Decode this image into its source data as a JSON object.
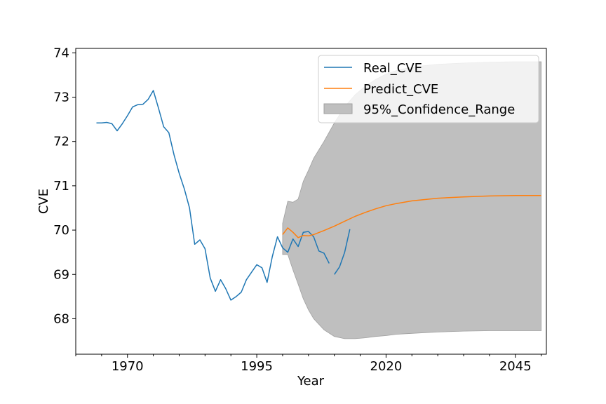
{
  "chart_data": {
    "type": "line",
    "title": "",
    "xlabel": "Year",
    "ylabel": "CVE",
    "xlim": [
      1960,
      2051
    ],
    "ylim": [
      67.2,
      74.1
    ],
    "xticks": [
      1970,
      1995,
      2020,
      2045
    ],
    "yticks": [
      68,
      69,
      70,
      71,
      72,
      73,
      74
    ],
    "grid": false,
    "legend_position": "top-right",
    "legend": [
      "Real_CVE",
      "Predict_CVE",
      "95%_Confidence_Range"
    ],
    "colors": {
      "real": "#1f77b4",
      "predict": "#ff7f0e",
      "band": "#bfbfbf",
      "band_edge": "#a0a0a0"
    },
    "series": [
      {
        "name": "Real_CVE",
        "x": [
          1964,
          1965,
          1966,
          1967,
          1968,
          1969,
          1970,
          1971,
          1972,
          1973,
          1974,
          1975,
          1976,
          1977,
          1978,
          1979,
          1980,
          1981,
          1982,
          1983,
          1984,
          1985,
          1986,
          1987,
          1988,
          1989,
          1990,
          1991,
          1992,
          1993,
          1994,
          1995,
          1996,
          1997,
          1998,
          1999,
          2000,
          2001,
          2002,
          2003,
          2004,
          2005,
          2006,
          2007,
          2008,
          2009
        ],
        "y": [
          72.42,
          72.42,
          72.43,
          72.4,
          72.24,
          72.4,
          72.58,
          72.78,
          72.83,
          72.84,
          72.95,
          73.15,
          72.75,
          72.33,
          72.2,
          71.7,
          71.28,
          70.93,
          70.5,
          69.68,
          69.78,
          69.58,
          68.92,
          68.62,
          68.88,
          68.68,
          68.42,
          68.5,
          68.6,
          68.88,
          69.05,
          69.22,
          69.15,
          68.82,
          69.4,
          69.85,
          69.6,
          69.5,
          69.8,
          69.63,
          69.95,
          69.97,
          69.85,
          69.53,
          69.48,
          69.25
        ]
      },
      {
        "name": "Real_CVE (cont.)",
        "x": [
          2010,
          2011,
          2012,
          2013
        ],
        "y": [
          69.0,
          69.17,
          69.5,
          70.02
        ]
      },
      {
        "name": "Predict_CVE",
        "x": [
          2000,
          2001,
          2002,
          2003,
          2004,
          2005,
          2006,
          2008,
          2010,
          2012,
          2014,
          2016,
          2018,
          2020,
          2022,
          2025,
          2030,
          2035,
          2040,
          2045,
          2050
        ],
        "y": [
          69.9,
          70.05,
          69.95,
          69.83,
          69.88,
          69.87,
          69.9,
          69.99,
          70.09,
          70.2,
          70.31,
          70.4,
          70.48,
          70.55,
          70.6,
          70.66,
          70.72,
          70.75,
          70.77,
          70.78,
          70.78
        ]
      }
    ],
    "confidence_band": {
      "name": "95%_Confidence_Range",
      "x": [
        2000,
        2001,
        2002,
        2003,
        2004,
        2005,
        2006,
        2008,
        2010,
        2012,
        2014,
        2016,
        2018,
        2020,
        2022,
        2025,
        2030,
        2035,
        2040,
        2045,
        2050
      ],
      "upper": [
        70.15,
        70.65,
        70.63,
        70.7,
        71.1,
        71.35,
        71.62,
        72.0,
        72.42,
        72.78,
        73.05,
        73.25,
        73.4,
        73.52,
        73.6,
        73.68,
        73.74,
        73.77,
        73.79,
        73.8,
        73.8
      ],
      "lower": [
        69.45,
        69.45,
        69.1,
        68.78,
        68.45,
        68.2,
        68.0,
        67.75,
        67.6,
        67.55,
        67.55,
        67.57,
        67.6,
        67.62,
        67.65,
        67.67,
        67.7,
        67.72,
        67.73,
        67.73,
        67.73
      ]
    }
  }
}
